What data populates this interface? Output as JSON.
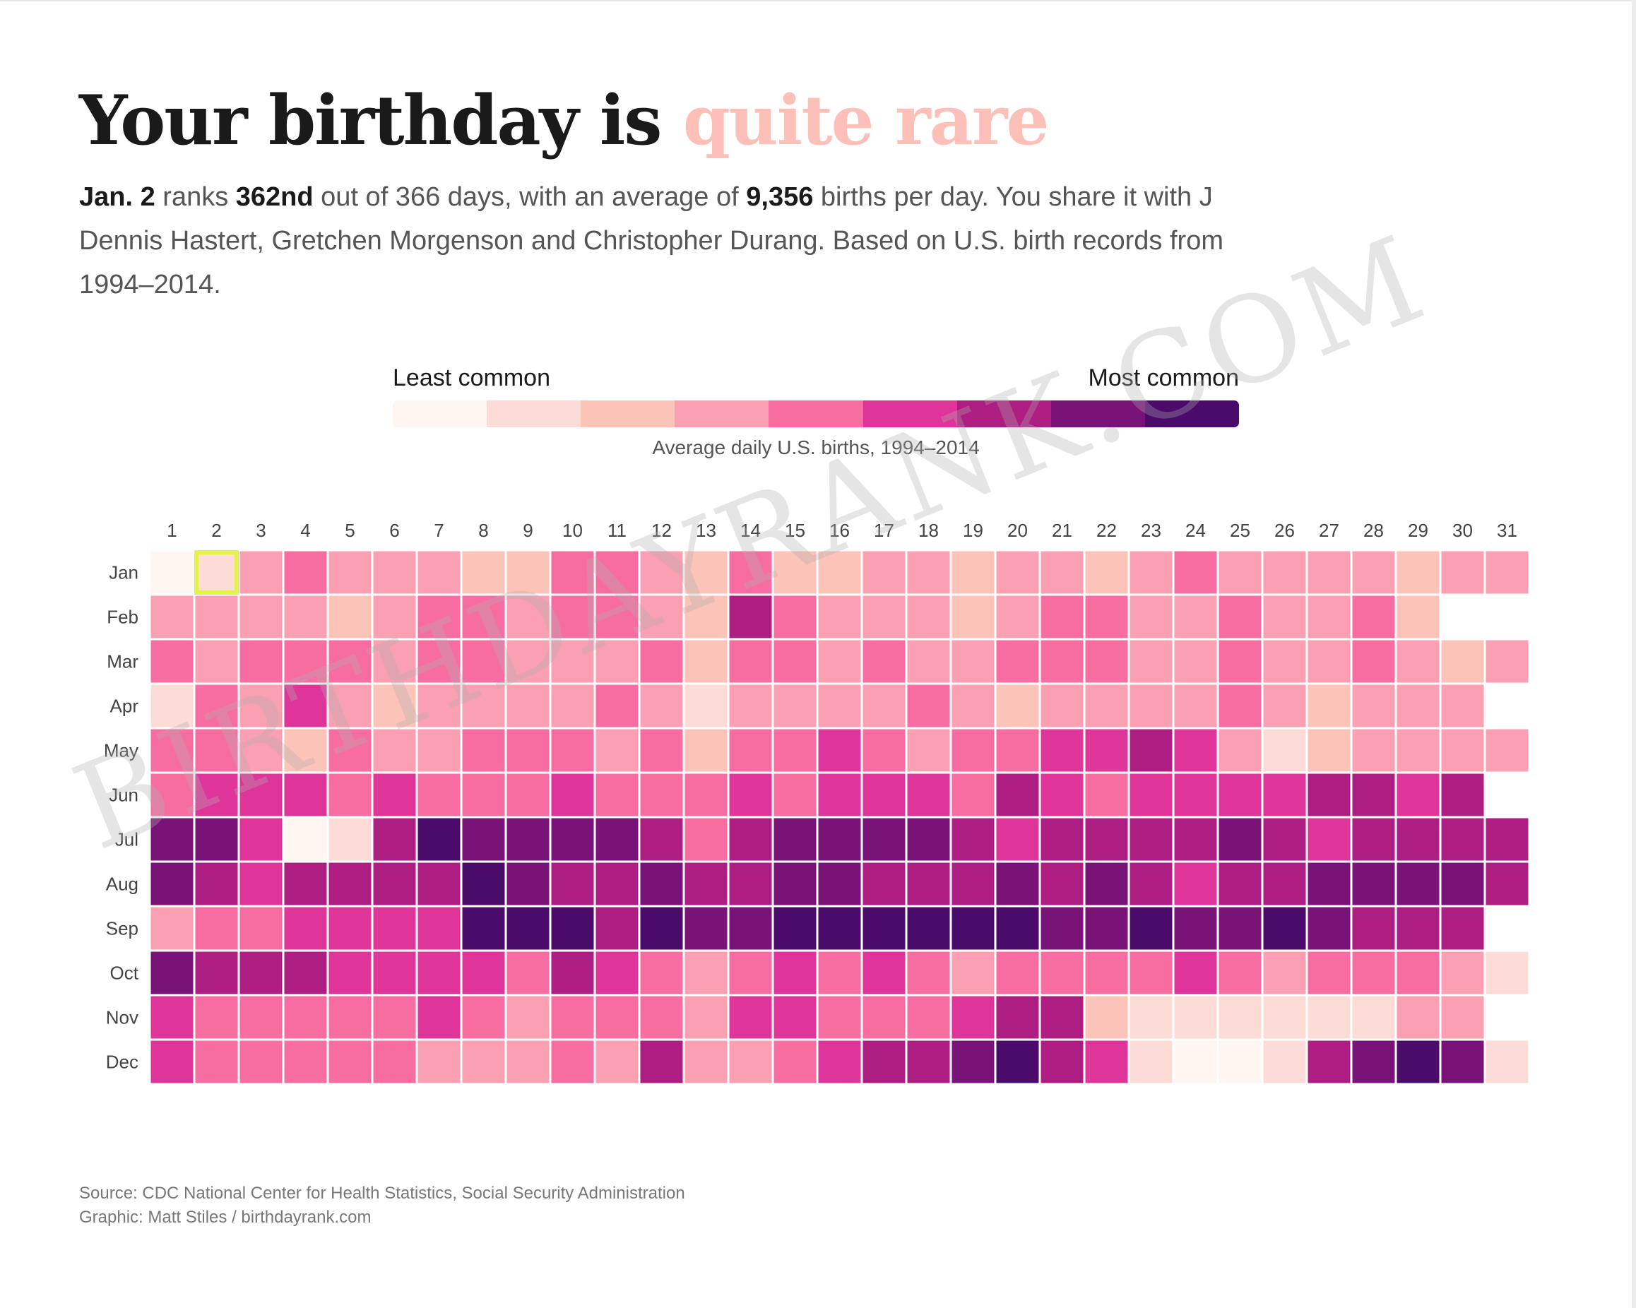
{
  "headline": {
    "lead": "Your birthday is",
    "accent": "quite rare",
    "accent_color": "#fdc0b8"
  },
  "description": {
    "date": "Jan. 2",
    "t1": "ranks",
    "rank": "362nd",
    "t2": "out of 366 days, with an average of",
    "births": "9,356",
    "t3": "births per day. You share it with J Dennis Hastert, Gretchen Morgenson and Christopher Durang. Based on U.S. birth records from 1994–2014."
  },
  "legend": {
    "least": "Least common",
    "most": "Most common",
    "caption": "Average daily U.S. births, 1994–2014",
    "colors": [
      "#fff5f1",
      "#fddcd8",
      "#fcc3b9",
      "#fba0b2",
      "#f76da1",
      "#df359a",
      "#ae1d81",
      "#7a1378",
      "#4a0b6a"
    ]
  },
  "chart_data": {
    "type": "heatmap",
    "title": "Average daily U.S. births, 1994–2014",
    "x_labels": [
      "1",
      "2",
      "3",
      "4",
      "5",
      "6",
      "7",
      "8",
      "9",
      "10",
      "11",
      "12",
      "13",
      "14",
      "15",
      "16",
      "17",
      "18",
      "19",
      "20",
      "21",
      "22",
      "23",
      "24",
      "25",
      "26",
      "27",
      "28",
      "29",
      "30",
      "31"
    ],
    "y_labels": [
      "Jan",
      "Feb",
      "Mar",
      "Apr",
      "May",
      "Jun",
      "Jul",
      "Aug",
      "Sep",
      "Oct",
      "Nov",
      "Dec"
    ],
    "scale": "color bins 0 (least common) to 8 (most common)",
    "values": [
      [
        0,
        1,
        3,
        4,
        3,
        3,
        3,
        2,
        2,
        4,
        4,
        3,
        2,
        4,
        2,
        2,
        3,
        3,
        2,
        3,
        3,
        2,
        3,
        4,
        3,
        3,
        3,
        3,
        2,
        3,
        3
      ],
      [
        3,
        3,
        3,
        3,
        2,
        3,
        4,
        4,
        3,
        4,
        4,
        3,
        2,
        6,
        4,
        3,
        3,
        3,
        2,
        3,
        4,
        4,
        3,
        3,
        4,
        3,
        3,
        4,
        2
      ],
      [
        4,
        3,
        4,
        4,
        4,
        3,
        4,
        4,
        3,
        3,
        3,
        4,
        2,
        4,
        4,
        3,
        4,
        3,
        3,
        4,
        4,
        4,
        3,
        3,
        4,
        3,
        3,
        4,
        3,
        2,
        3
      ],
      [
        1,
        4,
        3,
        5,
        3,
        2,
        3,
        3,
        3,
        3,
        4,
        3,
        1,
        3,
        3,
        3,
        3,
        4,
        3,
        2,
        3,
        3,
        3,
        3,
        4,
        3,
        2,
        3,
        3,
        3
      ],
      [
        4,
        4,
        3,
        2,
        4,
        3,
        3,
        4,
        4,
        4,
        3,
        4,
        2,
        4,
        4,
        5,
        4,
        3,
        4,
        4,
        5,
        5,
        6,
        5,
        3,
        1,
        2,
        3,
        3,
        3,
        3
      ],
      [
        4,
        5,
        5,
        5,
        4,
        5,
        4,
        4,
        4,
        5,
        4,
        4,
        4,
        5,
        4,
        5,
        5,
        5,
        4,
        6,
        5,
        4,
        5,
        5,
        5,
        5,
        6,
        6,
        5,
        6
      ],
      [
        7,
        7,
        5,
        0,
        1,
        6,
        8,
        7,
        7,
        7,
        7,
        6,
        4,
        6,
        7,
        7,
        7,
        7,
        6,
        5,
        6,
        6,
        6,
        6,
        7,
        6,
        5,
        6,
        6,
        6,
        6
      ],
      [
        7,
        6,
        5,
        6,
        6,
        6,
        6,
        8,
        7,
        6,
        6,
        7,
        6,
        6,
        7,
        7,
        6,
        6,
        6,
        7,
        6,
        7,
        6,
        5,
        6,
        6,
        7,
        7,
        7,
        7,
        6
      ],
      [
        3,
        4,
        4,
        5,
        5,
        5,
        5,
        8,
        8,
        8,
        6,
        8,
        7,
        7,
        8,
        8,
        8,
        8,
        8,
        8,
        7,
        7,
        8,
        7,
        7,
        8,
        7,
        6,
        6,
        6
      ],
      [
        7,
        6,
        6,
        6,
        5,
        5,
        5,
        5,
        4,
        6,
        5,
        4,
        3,
        4,
        5,
        4,
        5,
        4,
        3,
        4,
        4,
        4,
        4,
        5,
        4,
        3,
        4,
        4,
        4,
        3,
        1
      ],
      [
        5,
        4,
        4,
        4,
        4,
        4,
        5,
        4,
        3,
        4,
        4,
        4,
        3,
        5,
        5,
        4,
        4,
        4,
        5,
        6,
        6,
        2,
        1,
        1,
        1,
        1,
        1,
        1,
        3,
        3
      ],
      [
        5,
        4,
        4,
        4,
        4,
        4,
        3,
        3,
        3,
        4,
        3,
        6,
        3,
        3,
        4,
        5,
        6,
        6,
        7,
        8,
        6,
        5,
        1,
        0,
        0,
        1,
        6,
        7,
        8,
        7,
        1
      ]
    ],
    "highlight": {
      "month": "Jan",
      "day": "2",
      "color": "#e4f24a"
    }
  },
  "footer": {
    "source": "Source: CDC National Center for Health Statistics, Social Security Administration",
    "graphic": "Graphic: Matt Stiles / birthdayrank.com"
  },
  "watermark": "BIRTHDAYRANK.COM"
}
